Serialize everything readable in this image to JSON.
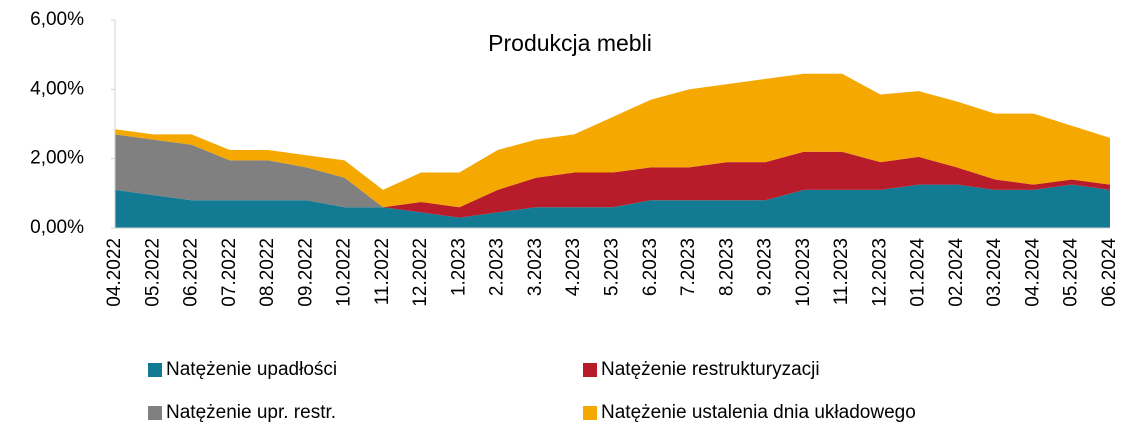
{
  "chart_data": {
    "type": "stacked_area",
    "title": "Produkcja mebli",
    "categories": [
      "04.2022",
      "05.2022",
      "06.2022",
      "07.2022",
      "08.2022",
      "09.2022",
      "10.2022",
      "11.2022",
      "12.2022",
      "1.2023",
      "2.2023",
      "3.2023",
      "4.2023",
      "5.2023",
      "6.2023",
      "7.2023",
      "8.2023",
      "9.2023",
      "10.2023",
      "11.2023",
      "12.2023",
      "01.2024",
      "02.2024",
      "03.2024",
      "04.2024",
      "05.2024",
      "06.2024"
    ],
    "series": [
      {
        "name": "Natężenie upadłości",
        "color": "#127a93",
        "values": [
          1.1,
          0.95,
          0.8,
          0.8,
          0.8,
          0.8,
          0.6,
          0.6,
          0.45,
          0.3,
          0.45,
          0.6,
          0.6,
          0.6,
          0.8,
          0.8,
          0.8,
          0.8,
          1.1,
          1.1,
          1.1,
          1.25,
          1.25,
          1.1,
          1.1,
          1.25,
          1.1
        ]
      },
      {
        "name": "Natężenie restrukturyzacji",
        "color": "#b81c2b",
        "values": [
          0,
          0,
          0,
          0,
          0,
          0,
          0,
          0,
          0.3,
          0.3,
          0.65,
          0.85,
          1.0,
          1.0,
          0.95,
          0.95,
          1.1,
          1.1,
          1.1,
          1.1,
          0.8,
          0.8,
          0.5,
          0.3,
          0.15,
          0.15,
          0.15
        ]
      },
      {
        "name": "Natężenie upr. restr.",
        "color": "#808080",
        "values": [
          1.6,
          1.6,
          1.6,
          1.15,
          1.15,
          0.95,
          0.85,
          0,
          0,
          0,
          0,
          0,
          0,
          0,
          0,
          0,
          0,
          0,
          0,
          0,
          0,
          0,
          0,
          0,
          0,
          0,
          0
        ]
      },
      {
        "name": "Natężenie ustalenia dnia układowego",
        "color": "#f5a800",
        "values": [
          0.15,
          0.15,
          0.3,
          0.3,
          0.3,
          0.35,
          0.5,
          0.5,
          0.85,
          1.0,
          1.15,
          1.1,
          1.1,
          1.6,
          1.95,
          2.25,
          2.25,
          2.4,
          2.25,
          2.25,
          1.95,
          1.9,
          1.9,
          1.9,
          2.05,
          1.55,
          1.35
        ]
      }
    ],
    "ylim": [
      0,
      6
    ],
    "yticks": [
      {
        "value": 0,
        "label": "0,00%"
      },
      {
        "value": 2,
        "label": "2,00%"
      },
      {
        "value": 4,
        "label": "4,00%"
      },
      {
        "value": 6,
        "label": "6,00%"
      }
    ]
  }
}
